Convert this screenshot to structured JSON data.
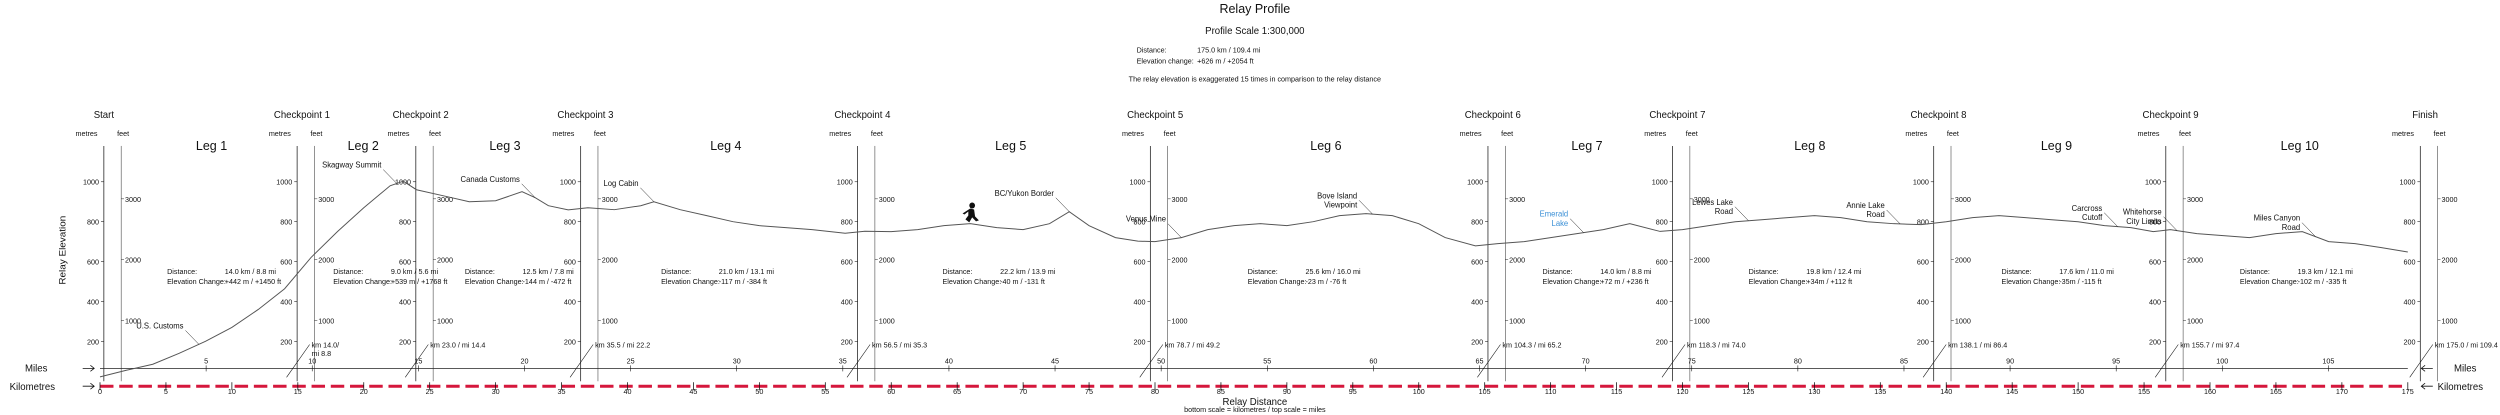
{
  "chart_data": {
    "type": "line",
    "title": "Relay Profile",
    "subtitle": "Profile Scale 1:300,000",
    "summary": {
      "distance_label": "Distance:",
      "distance_value": "175.0 km / 109.4 mi",
      "elevation_label": "Elevation change:",
      "elevation_value": "+626 m / +2054 ft"
    },
    "exaggeration_note": "The relay elevation is exaggerated 15 times in comparison to the relay distance",
    "ylabel": "Relay Elevation",
    "xlabel": "Relay Distance",
    "scale_note": "bottom scale = kilometres / top scale = miles",
    "miles_label": "Miles",
    "km_label": "Kilometres",
    "unit_metres": "metres",
    "unit_feet": "feet",
    "xlim": [
      0,
      175
    ],
    "ylim": [
      0,
      1080
    ],
    "km_ticks": [
      0,
      5,
      10,
      15,
      20,
      25,
      30,
      35,
      40,
      45,
      50,
      55,
      60,
      65,
      70,
      75,
      80,
      85,
      90,
      95,
      100,
      105,
      110,
      115,
      120,
      125,
      130,
      135,
      140,
      145,
      150,
      155,
      160,
      165,
      170,
      175
    ],
    "mile_ticks": [
      5,
      10,
      15,
      20,
      25,
      30,
      35,
      40,
      45,
      50,
      55,
      60,
      65,
      70,
      75,
      80,
      85,
      90,
      95,
      100,
      105
    ],
    "metre_ticks": [
      200,
      400,
      600,
      800,
      1000
    ],
    "feet_ticks": [
      1000,
      2000,
      3000
    ],
    "checkpoints": [
      {
        "name": "Start",
        "km": 0
      },
      {
        "name": "Checkpoint 1",
        "km": 14.0,
        "marker": "km 14.0/\nmi 8.8"
      },
      {
        "name": "Checkpoint 2",
        "km": 23.0,
        "marker": "km 23.0 / mi 14.4"
      },
      {
        "name": "Checkpoint 3",
        "km": 35.5,
        "marker": "km 35.5 / mi 22.2"
      },
      {
        "name": "Checkpoint 4",
        "km": 56.5,
        "marker": "km 56.5 / mi 35.3"
      },
      {
        "name": "Checkpoint 5",
        "km": 78.7,
        "marker": "km 78.7 / mi 49.2"
      },
      {
        "name": "Checkpoint 6",
        "km": 104.3,
        "marker": "km 104.3 / mi 65.2"
      },
      {
        "name": "Checkpoint 7",
        "km": 118.3,
        "marker": "km 118.3 / mi 74.0"
      },
      {
        "name": "Checkpoint 8",
        "km": 138.1,
        "marker": "km 138.1 / mi 86.4"
      },
      {
        "name": "Checkpoint 9",
        "km": 155.7,
        "marker": "km 155.7 / mi 97.4"
      },
      {
        "name": "Finish",
        "km": 175.0,
        "marker": "km 175.0 / mi 109.4"
      }
    ],
    "legs": [
      {
        "name": "Leg 1",
        "distance": "14.0 km / 8.8 mi",
        "elevation": "+442 m / +1450 ft"
      },
      {
        "name": "Leg 2",
        "distance": "9.0 km / 5.6 mi",
        "elevation": "+539 m / +1768 ft"
      },
      {
        "name": "Leg 3",
        "distance": "12.5 km / 7.8 mi",
        "elevation": "-144 m / -472 ft"
      },
      {
        "name": "Leg 4",
        "distance": "21.0 km / 13.1 mi",
        "elevation": "-117 m / -384 ft"
      },
      {
        "name": "Leg 5",
        "distance": "22.2 km / 13.9 mi",
        "elevation": "-40 m / -131 ft"
      },
      {
        "name": "Leg 6",
        "distance": "25.6 km / 16.0 mi",
        "elevation": "-23 m / -76 ft"
      },
      {
        "name": "Leg 7",
        "distance": "14.0 km / 8.8 mi",
        "elevation": "+72 m / +236 ft"
      },
      {
        "name": "Leg 8",
        "distance": "19.8 km / 12.4 mi",
        "elevation": "+34m / +112 ft"
      },
      {
        "name": "Leg 9",
        "distance": "17.6 km / 11.0 mi",
        "elevation": "-35m / -115 ft"
      },
      {
        "name": "Leg 10",
        "distance": "19.3 km / 12.1 mi",
        "elevation": "-102 m / -335 ft"
      }
    ],
    "leg_distance_label": "Distance:",
    "leg_elevation_label": "Elevation Change:",
    "landmarks": [
      {
        "name": "U.S. Customs",
        "km": 7.5
      },
      {
        "name": "Skagway Summit",
        "km": 22.5
      },
      {
        "name": "Canada Customs",
        "km": 33.0
      },
      {
        "name": "Log Cabin",
        "km": 42.0
      },
      {
        "name": "BC/Yukon Border",
        "km": 73.5
      },
      {
        "name": "Venus Mine",
        "km": 82.0
      },
      {
        "name": "Bove Island\nViewpoint",
        "km": 96.5
      },
      {
        "name": "Emerald\nLake",
        "km": 112.5,
        "color": "#3a8fd6"
      },
      {
        "name": "Lewes Lake\nRoad",
        "km": 125.0
      },
      {
        "name": "Annie Lake\nRoad",
        "km": 136.5
      },
      {
        "name": "Carcross\nCutoff",
        "km": 153.0
      },
      {
        "name": "Whitehorse\nCity Limits",
        "km": 157.5
      },
      {
        "name": "Miles Canyon\nRoad",
        "km": 168.0
      }
    ],
    "profile": {
      "x": [
        0,
        2,
        4,
        6,
        8,
        10,
        12,
        14,
        16,
        18,
        20,
        22,
        23,
        24,
        26,
        28,
        30,
        32,
        33,
        34,
        35.5,
        37,
        39,
        41,
        42,
        44,
        46,
        48,
        50,
        52,
        54,
        56.5,
        58,
        60,
        62,
        64,
        66,
        68,
        70,
        72,
        73.5,
        75,
        77,
        78.7,
        80,
        82,
        84,
        86,
        88,
        90,
        92,
        94,
        96,
        98,
        100,
        102,
        104.3,
        106,
        108,
        110,
        112,
        114,
        116,
        118.3,
        120,
        122,
        124,
        126,
        128,
        130,
        132,
        134,
        136,
        138.1,
        140,
        142,
        144,
        146,
        148,
        150,
        152,
        154,
        155.7,
        157,
        159,
        161,
        163,
        165,
        167,
        169,
        171,
        173,
        175
      ],
      "y": [
        22,
        55,
        85,
        140,
        200,
        270,
        360,
        464,
        620,
        750,
        870,
        980,
        1003,
        960,
        930,
        900,
        905,
        950,
        920,
        880,
        859,
        870,
        860,
        880,
        900,
        860,
        830,
        800,
        780,
        770,
        760,
        742,
        752,
        750,
        760,
        780,
        790,
        770,
        760,
        790,
        850,
        780,
        720,
        702,
        700,
        720,
        760,
        780,
        790,
        780,
        800,
        830,
        840,
        830,
        790,
        720,
        679,
        690,
        700,
        720,
        740,
        760,
        790,
        751,
        760,
        780,
        800,
        810,
        820,
        830,
        820,
        800,
        790,
        785,
        800,
        820,
        830,
        820,
        810,
        800,
        780,
        770,
        750,
        760,
        740,
        730,
        720,
        740,
        750,
        700,
        690,
        670,
        648
      ]
    }
  }
}
